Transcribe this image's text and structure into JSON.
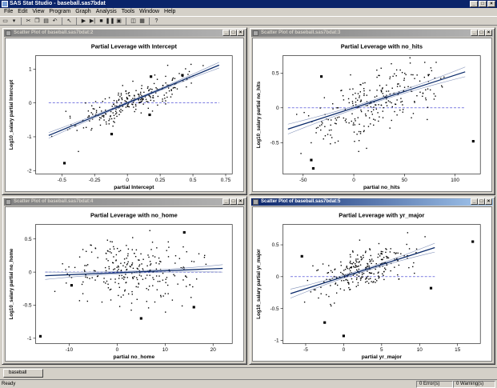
{
  "app": {
    "title": "SAS Stat Studio - baseball.sas7bdat"
  },
  "menu": [
    "File",
    "Edit",
    "View",
    "Program",
    "Graph",
    "Analysis",
    "Tools",
    "Window",
    "Help"
  ],
  "toolbar_icons": [
    "new-icon",
    "open-icon",
    "save-icon",
    "cut-icon",
    "copy-icon",
    "paste-icon",
    "undo-icon",
    "pointer-icon",
    "play-icon",
    "step-icon",
    "stop-icon",
    "pause-icon",
    "break-icon",
    "window-icon",
    "tile-icon",
    "help-icon"
  ],
  "windows": [
    {
      "title": "Scatter Plot of baseball.sas7bdat:2",
      "active": false,
      "chart": "Partial Leverage with Intercept"
    },
    {
      "title": "Scatter Plot of baseball.sas7bdat:3",
      "active": false,
      "chart": "Partial Leverage with no_hits"
    },
    {
      "title": "Scatter Plot of baseball.sas7bdat:4",
      "active": false,
      "chart": "Partial Leverage with no_home"
    },
    {
      "title": "Scatter Plot of baseball.sas7bdat:5",
      "active": true,
      "chart": "Partial Leverage with yr_major"
    }
  ],
  "chart_data": [
    {
      "type": "scatter",
      "title": "Partial Leverage with Intercept",
      "xlabel": "partial Intercept",
      "ylabel": "Log10_salary partial Intercept",
      "xlim": [
        -0.7,
        0.8
      ],
      "ylim": [
        -2.1,
        1.4
      ],
      "xticks": [
        -0.5,
        -0.25,
        0,
        0.25,
        0.5,
        0.75
      ],
      "xtick_labels": [
        "-0.5",
        "-0.25",
        "0",
        "0.25",
        "0.5",
        "0.75"
      ],
      "yticks": [
        -2,
        -1,
        0,
        1
      ],
      "ytick_labels": [
        "-2",
        "-1",
        "0",
        "1"
      ],
      "fit": {
        "slope": 1.6,
        "intercept": 0.0,
        "band": 0.06
      },
      "points_seed": 11,
      "n_points": 260,
      "x_spread": [
        -0.6,
        0.7
      ],
      "noise": 0.22,
      "outliers": [
        [
          -0.48,
          -1.78
        ],
        [
          -0.12,
          -0.92
        ],
        [
          0.18,
          0.78
        ],
        [
          0.17,
          -0.35
        ],
        [
          0.42,
          0.82
        ]
      ]
    },
    {
      "type": "scatter",
      "title": "Partial Leverage with no_hits",
      "xlabel": "partial no_hits",
      "ylabel": "Log10_salary partial no_hits",
      "xlim": [
        -70,
        125
      ],
      "ylim": [
        -0.95,
        0.75
      ],
      "xticks": [
        -50,
        0,
        50,
        100
      ],
      "xtick_labels": [
        "-50",
        "0",
        "50",
        "100"
      ],
      "yticks": [
        -0.5,
        0,
        0.5
      ],
      "ytick_labels": [
        "-0.5",
        "0",
        "0.5"
      ],
      "fit": {
        "slope": 0.0047,
        "intercept": 0.0,
        "band": 0.05
      },
      "points_seed": 23,
      "n_points": 260,
      "x_spread": [
        -65,
        110
      ],
      "noise": 0.22,
      "outliers": [
        [
          -42,
          -0.75
        ],
        [
          -40,
          -0.87
        ],
        [
          -32,
          0.45
        ],
        [
          118,
          -0.48
        ]
      ]
    },
    {
      "type": "scatter",
      "title": "Partial Leverage with no_home",
      "xlabel": "partial no_home",
      "ylabel": "Log10_salary partial no_home",
      "xlim": [
        -17,
        24
      ],
      "ylim": [
        -1.08,
        0.72
      ],
      "xticks": [
        -10,
        0,
        10,
        20
      ],
      "xtick_labels": [
        "-10",
        "0",
        "10",
        "20"
      ],
      "yticks": [
        -1,
        -0.5,
        0,
        0.5
      ],
      "ytick_labels": [
        "-1",
        "-0.5",
        "0",
        "0.5"
      ],
      "fit": {
        "slope": 0.003,
        "intercept": -0.01,
        "band": 0.04
      },
      "points_seed": 37,
      "n_points": 260,
      "x_spread": [
        -15,
        22
      ],
      "noise": 0.25,
      "outliers": [
        [
          -16,
          -0.97
        ],
        [
          -9.5,
          -0.2
        ],
        [
          5,
          -0.7
        ],
        [
          14,
          0.6
        ],
        [
          16,
          -0.53
        ]
      ]
    },
    {
      "type": "scatter",
      "title": "Partial Leverage with yr_major",
      "xlabel": "partial yr_major",
      "ylabel": "Log10_salary partial yr_major",
      "xlim": [
        -8,
        18
      ],
      "ylim": [
        -1.05,
        0.82
      ],
      "xticks": [
        -5,
        0,
        5,
        10,
        15
      ],
      "xtick_labels": [
        "-5",
        "0",
        "5",
        "10",
        "15"
      ],
      "yticks": [
        -1,
        -0.5,
        0,
        0.5
      ],
      "ytick_labels": [
        "-1",
        "-0.5",
        "0",
        "0.5"
      ],
      "fit": {
        "slope": 0.038,
        "intercept": 0.0,
        "band": 0.05
      },
      "points_seed": 51,
      "n_points": 260,
      "x_spread": [
        -7,
        12
      ],
      "noise": 0.17,
      "outliers": [
        [
          -5.5,
          0.32
        ],
        [
          -2.5,
          -0.72
        ],
        [
          0,
          -0.93
        ],
        [
          11.5,
          -0.18
        ],
        [
          17,
          0.55
        ]
      ]
    }
  ],
  "tab": {
    "label": "baseball"
  },
  "status": {
    "ready": "Ready",
    "errors": "0 Error(s)",
    "warnings": "0 Warning(s)"
  }
}
